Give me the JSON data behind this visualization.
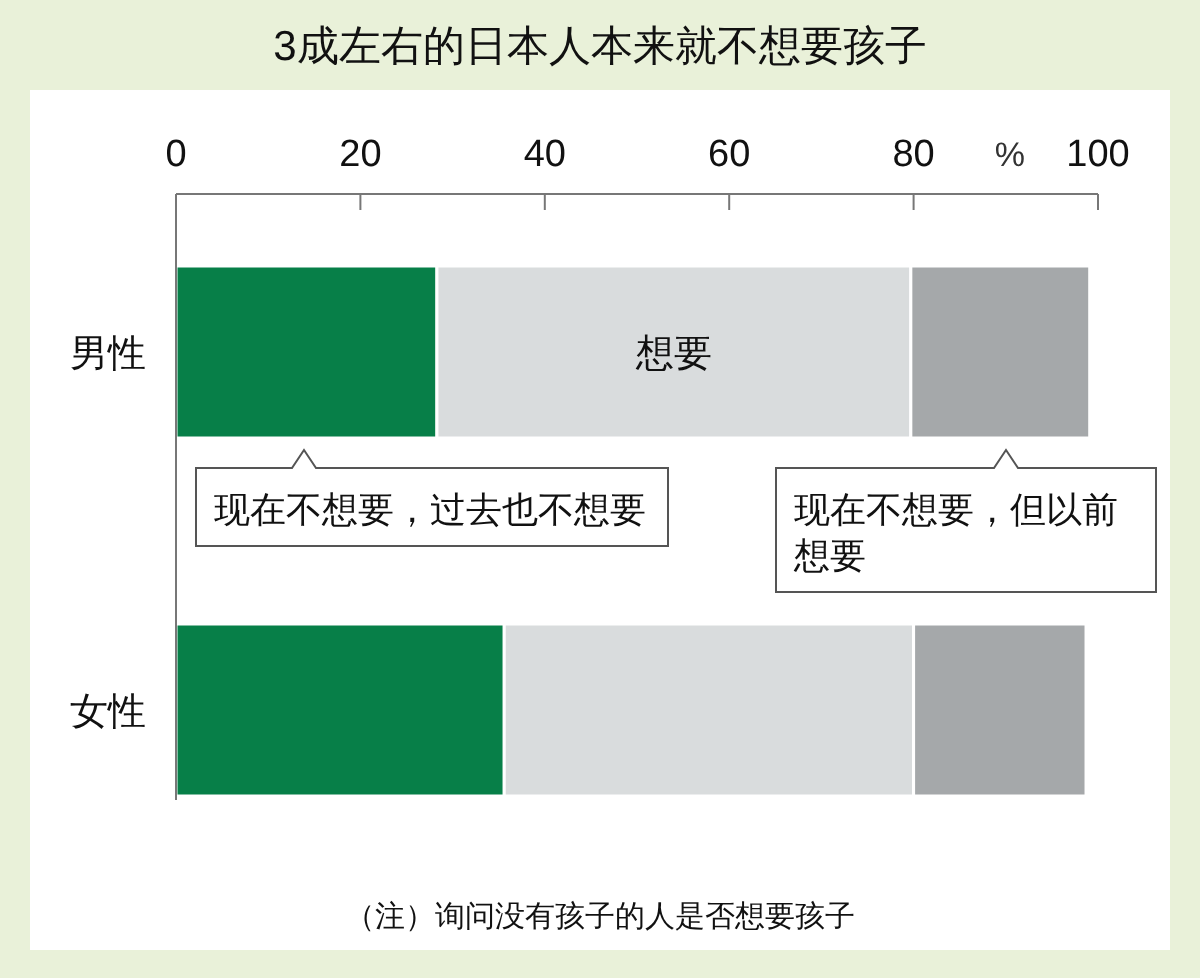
{
  "chart_data": {
    "type": "bar",
    "orientation": "horizontal",
    "stacked": true,
    "title": "3成左右的日本人本来就不想要孩子",
    "xlabel": "%",
    "categories": [
      "男性",
      "女性"
    ],
    "series": [
      {
        "color": "#077f48",
        "values": [
          28.3,
          35.6
        ]
      },
      {
        "name": "想要",
        "color": "#d9dcdd",
        "values": [
          51.4,
          44.4
        ]
      },
      {
        "color": "#a5a8aa",
        "values": [
          19.4,
          18.7
        ]
      }
    ],
    "xlim": [
      0,
      100
    ],
    "xticks": [
      0,
      20,
      40,
      60,
      80,
      100
    ],
    "grid": false,
    "annotations": [
      "现在不想要，过去也不想要",
      "现在不想要，但以前想要",
      "（注）询问没有孩子的人是否想要孩子"
    ]
  }
}
